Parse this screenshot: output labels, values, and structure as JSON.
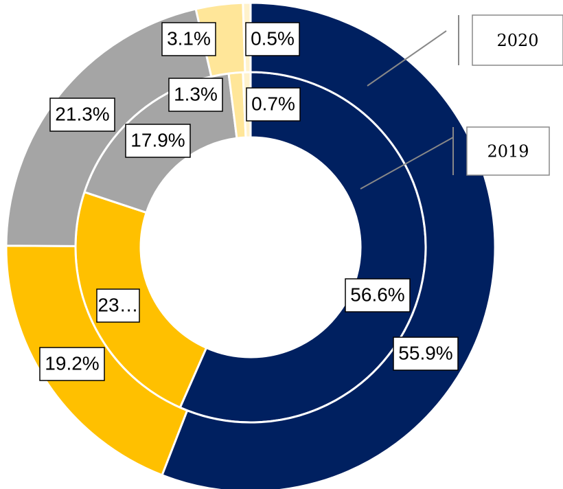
{
  "chart_data": {
    "type": "donut",
    "colors": [
      "#002060",
      "#ffc000",
      "#a5a5a5",
      "#ffe699",
      "#fff2cc"
    ],
    "series": [
      {
        "name": "2019",
        "values": [
          56.6,
          23.5,
          17.9,
          1.3,
          0.7
        ],
        "value_labels": [
          "56.6%",
          "23…",
          "17.9%",
          "1.3%",
          "0.7%"
        ]
      },
      {
        "name": "2020",
        "values": [
          55.9,
          19.2,
          21.3,
          3.1,
          0.5
        ],
        "value_labels": [
          "55.9%",
          "19.2%",
          "21.3%",
          "3.1%",
          "0.5%"
        ]
      }
    ]
  }
}
